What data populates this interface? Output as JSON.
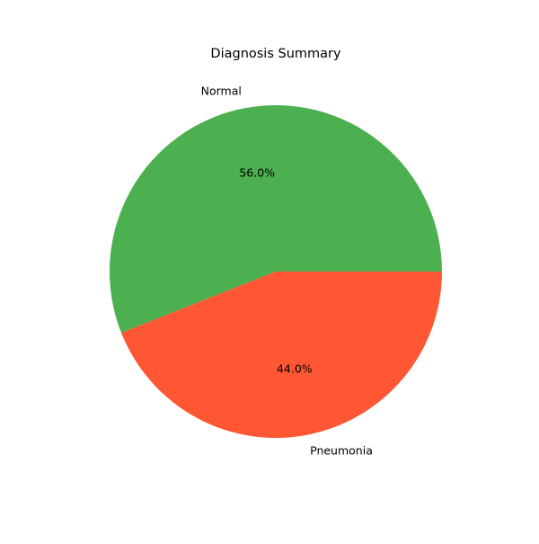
{
  "chart_data": {
    "type": "pie",
    "title": "Diagnosis Summary",
    "categories": [
      "Normal",
      "Pneumonia"
    ],
    "values": [
      56.0,
      44.0
    ],
    "percent_labels": [
      "56.0%",
      "44.0%"
    ],
    "colors": [
      "#4caf50",
      "#ff5733"
    ],
    "start_angle_deg": 0,
    "direction": "counterclockwise",
    "legend": "none"
  }
}
